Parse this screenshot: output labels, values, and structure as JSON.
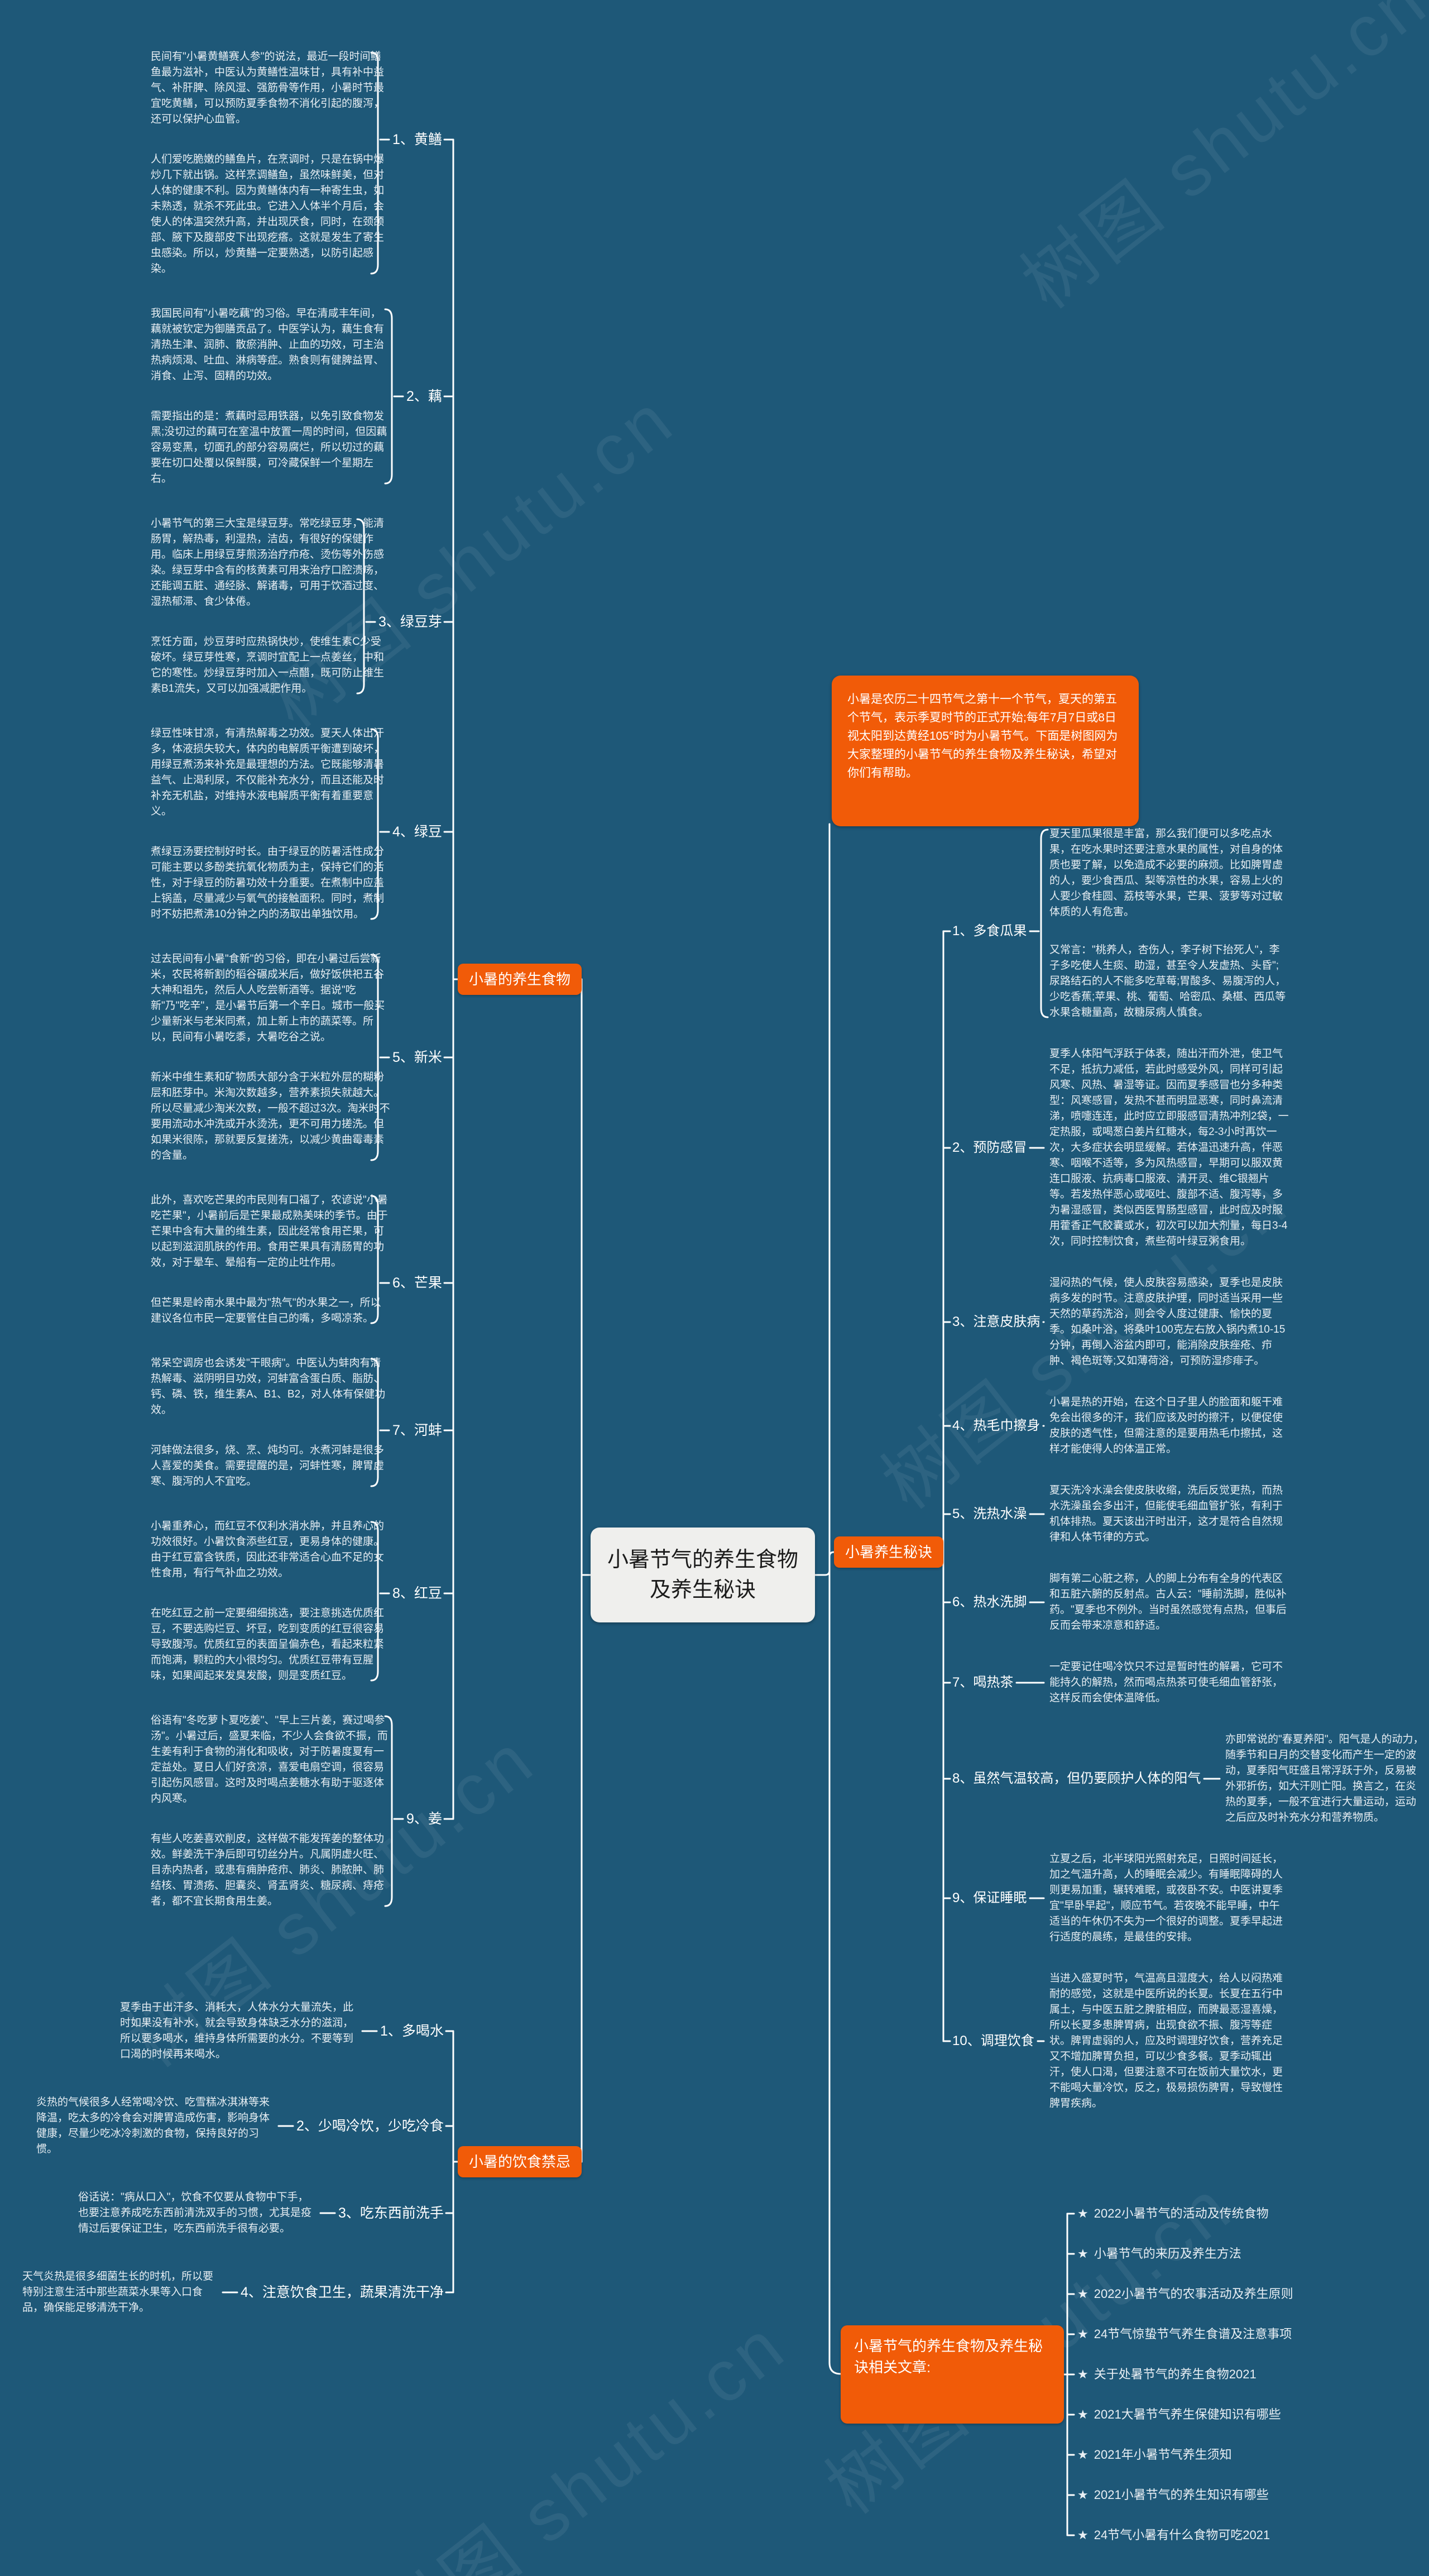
{
  "title": "小暑节气的养生食物及养生秘诀",
  "watermark": "树图 shutu.cn",
  "colors": {
    "background": "#1E5878",
    "accent_orange": "#F15B08",
    "title_box": "#EFEFED",
    "connector": "#FFFFFF",
    "note_text": "#E7EEF3"
  },
  "foods_branch": {
    "label": "小暑的养生食物",
    "items": [
      {
        "label": "1、黄鳝",
        "notes": [
          "民间有\"小暑黄鳝赛人参\"的说法，最近一段时间鳝鱼最为滋补，中医认为黄鳝性温味甘，具有补中益气、补肝脾、除风湿、强筋骨等作用，小暑时节最宜吃黄鳝，可以预防夏季食物不消化引起的腹泻，还可以保护心血管。",
          "人们爱吃脆嫩的鳝鱼片，在烹调时，只是在锅中爆炒几下就出锅。这样烹调鳝鱼，虽然味鲜美，但对人体的健康不利。因为黄鳝体内有一种寄生虫，如未熟透，就杀不死此虫。它进入人体半个月后，会使人的体温突然升高，并出现厌食，同时，在颈颌部、腋下及腹部皮下出现疙瘩。这就是发生了寄生虫感染。所以，炒黄鳝一定要熟透，以防引起感染。"
        ]
      },
      {
        "label": "2、藕",
        "notes": [
          "我国民间有\"小暑吃藕\"的习俗。早在清咸丰年间，藕就被钦定为御膳贡品了。中医学认为，藕生食有清热生津、润肺、散瘀消肿、止血的功效，可主治热病烦渴、吐血、淋病等症。熟食则有健脾益胃、消食、止泻、固精的功效。",
          "需要指出的是：煮藕时忌用铁器，以免引致食物发黑;没切过的藕可在室温中放置一周的时间，但因藕容易变黑，切面孔的部分容易腐烂，所以切过的藕要在切口处覆以保鲜膜，可冷藏保鲜一个星期左右。"
        ]
      },
      {
        "label": "3、绿豆芽",
        "notes": [
          "小暑节气的第三大宝是绿豆芽。常吃绿豆芽，能清肠胃，解热毒，利湿热，洁齿，有很好的保健作用。临床上用绿豆芽煎汤治疗疖疮、烫伤等外伤感染。绿豆芽中含有的核黄素可用来治疗口腔溃疡，还能调五脏、通经脉、解诸毒，可用于饮酒过度、湿热郁滞、食少体倦。",
          "烹饪方面，炒豆芽时应热锅快炒，使维生素C少受破坏。绿豆芽性寒，烹调时宜配上一点姜丝，中和它的寒性。炒绿豆芽时加入一点醋，既可防止维生素B1流失，又可以加强减肥作用。"
        ]
      },
      {
        "label": "4、绿豆",
        "notes": [
          "绿豆性味甘凉，有清热解毒之功效。夏天人体出汗多，体液损失较大，体内的电解质平衡遭到破坏，用绿豆煮汤来补充是最理想的方法。它既能够清暑益气、止渴利尿，不仅能补充水分，而且还能及时补充无机盐，对维持水液电解质平衡有着重要意义。",
          "煮绿豆汤要控制好时长。由于绿豆的防暑活性成分可能主要以多酚类抗氧化物质为主，保持它们的活性，对于绿豆的防暑功效十分重要。在煮制中应盖上锅盖，尽量减少与氧气的接触面积。同时，煮制时不妨把煮沸10分钟之内的汤取出单独饮用。"
        ]
      },
      {
        "label": "5、新米",
        "notes": [
          "过去民间有小暑\"食新\"的习俗，即在小暑过后尝新米，农民将新割的稻谷碾成米后，做好饭供祀五谷大神和祖先，然后人人吃尝新酒等。据说\"吃新\"乃\"吃辛\"，是小暑节后第一个辛日。城市一般买少量新米与老米同煮，加上新上市的蔬菜等。所以，民间有小暑吃黍，大暑吃谷之说。",
          "新米中维生素和矿物质大部分含于米粒外层的糊粉层和胚芽中。米淘次数越多，营养素损失就越大。所以尽量减少淘米次数，一般不超过3次。淘米时不要用流动水冲洗或开水烫洗，更不可用力搓洗。但如果米很陈，那就要反复搓洗，以减少黄曲霉毒素的含量。"
        ]
      },
      {
        "label": "6、芒果",
        "notes": [
          "此外，喜欢吃芒果的市民则有口福了，农谚说\"小暑吃芒果\"，小暑前后是芒果最成熟美味的季节。由于芒果中含有大量的维生素，因此经常食用芒果，可以起到滋润肌肤的作用。食用芒果具有清肠胃的功效，对于晕车、晕船有一定的止吐作用。",
          "但芒果是岭南水果中最为\"热气\"的水果之一，所以建议各位市民一定要管住自己的嘴，多喝凉茶。"
        ]
      },
      {
        "label": "7、河蚌",
        "notes": [
          "常呆空调房也会诱发\"干眼病\"。中医认为蚌肉有清热解毒、滋阴明目功效，河蚌富含蛋白质、脂肪、钙、磷、铁，维生素A、B1、B2，对人体有保健功效。",
          "河蚌做法很多，烧、烹、炖均可。水煮河蚌是很多人喜爱的美食。需要提醒的是，河蚌性寒，脾胃虚寒、腹泻的人不宜吃。"
        ]
      },
      {
        "label": "8、红豆",
        "notes": [
          "小暑重养心，而红豆不仅利水消水肿，并且养心的功效很好。小暑饮食添些红豆，更易身体的健康。由于红豆富含铁质，因此还非常适合心血不足的女性食用，有行气补血之功效。",
          "在吃红豆之前一定要细细挑选，要注意挑选优质红豆，不要选购烂豆、坏豆，吃到变质的红豆很容易导致腹泻。优质红豆的表面呈偏赤色，看起来粒紧而饱满，颗粒的大小很均匀。优质红豆带有豆腥味，如果闻起来发臭发酸，则是变质红豆。"
        ]
      },
      {
        "label": "9、姜",
        "notes": [
          "俗语有\"冬吃萝卜夏吃姜\"、\"早上三片姜，赛过喝参汤\"。小暑过后，盛夏来临，不少人会食欲不振，而生姜有利于食物的消化和吸收，对于防暑度夏有一定益处。夏日人们好贪凉，喜爱电扇空调，很容易引起伤风感冒。这时及时喝点姜糖水有助于驱逐体内风寒。",
          "有些人吃姜喜欢削皮，这样做不能发挥姜的整体功效。鲜姜洗干净后即可切丝分片。凡属阴虚火旺、目赤内热者，或患有痈肿疮疖、肺炎、肺脓肿、肺结核、胃溃疡、胆囊炎、肾盂肾炎、糖尿病、痔疮者，都不宜长期食用生姜。"
        ]
      }
    ]
  },
  "tips_branch": {
    "label": "小暑养生秘诀",
    "intro": "小暑是农历二十四节气之第十一个节气，夏天的第五个节气，表示季夏时节的正式开始;每年7月7日或8日视太阳到达黄经105°时为小暑节气。下面是树图网为大家整理的小暑节气的养生食物及养生秘诀，希望对你们有帮助。",
    "items": [
      {
        "label": "1、多食瓜果",
        "notes": [
          "夏天里瓜果很是丰富，那么我们便可以多吃点水果，在吃水果时还要注意水果的属性，对自身的体质也要了解，以免造成不必要的麻烦。比如脾胃虚的人，要少食西瓜、梨等凉性的水果，容易上火的人要少食桂圆、荔枝等水果，芒果、菠萝等对过敏体质的人有危害。",
          "又常言：\"桃养人，杏伤人，李子树下抬死人\"，李子多吃使人生痰、助湿，甚至令人发虚热、头昏\";尿路结石的人不能多吃草莓;胃酸多、易腹泻的人，少吃香蕉;苹果、桃、葡萄、哈密瓜、桑椹、西瓜等水果含糖量高，故糖尿病人慎食。"
        ]
      },
      {
        "label": "2、预防感冒",
        "notes": [
          "夏季人体阳气浮跃于体表，随出汗而外泄，使卫气不足，抵抗力减低，若此时感受外风，同样可引起风寒、风热、暑湿等证。因而夏季感冒也分多种类型：风寒感冒，发热不甚而明显恶寒，同时鼻流清涕，喷嚏连连，此时应立即服感冒清热冲剂2袋，一定热服，或喝葱白姜片红糖水，每2-3小时再饮一次，大多症状会明显缓解。若体温迅速升高，伴恶寒、咽喉不适等，多为风热感冒，早期可以服双黄连口服液、抗病毒口服液、清开灵、维C银翘片等。若发热伴恶心或呕吐、腹部不适、腹泻等，多为暑湿感冒，类似西医胃肠型感冒，此时应及时服用藿香正气胶囊或水，初次可以加大剂量，每日3-4次，同时控制饮食，煮些荷叶绿豆粥食用。"
        ]
      },
      {
        "label": "3、注意皮肤病",
        "notes": [
          "湿闷热的气候，使人皮肤容易感染，夏季也是皮肤病多发的时节。注意皮肤护理，同时适当采用一些天然的草药洗浴，则会令人度过健康、愉快的夏季。如桑叶浴，将桑叶100克左右放入锅内煮10-15分钟，再倒入浴盆内即可，能消除皮肤痤疮、疖肿、褐色斑等;又如薄荷浴，可预防湿疹痱子。"
        ]
      },
      {
        "label": "4、热毛巾擦身",
        "notes": [
          "小暑是热的开始，在这个日子里人的脸面和躯干难免会出很多的汗，我们应该及时的擦汗，以便促使皮肤的透气性，但需注意的是要用热毛巾擦拭，这样才能使得人的体温正常。"
        ]
      },
      {
        "label": "5、洗热水澡",
        "notes": [
          "夏天洗冷水澡会使皮肤收缩，洗后反觉更热，而热水洗澡虽会多出汗，但能使毛细血管扩张，有利于机体排热。夏天该出汗时出汗，这才是符合自然规律和人体节律的方式。"
        ]
      },
      {
        "label": "6、热水洗脚",
        "notes": [
          "脚有第二心脏之称，人的脚上分布有全身的代表区和五脏六腑的反射点。古人云：\"睡前洗脚，胜似补药。\"夏季也不例外。当时虽然感觉有点热，但事后反而会带来凉意和舒适。"
        ]
      },
      {
        "label": "7、喝热茶",
        "notes": [
          "一定要记住喝冷饮只不过是暂时性的解暑，它可不能持久的解热，然而喝点热茶可使毛细血管舒张，这样反而会使体温降低。"
        ]
      },
      {
        "label": "8、虽然气温较高，但仍要顾护人体的阳气",
        "notes": [
          "亦即常说的\"春夏养阳\"。阳气是人的动力，随季节和日月的交替变化而产生一定的波动，夏季阳气旺盛且常浮跃于外，反易被外邪折伤，如大汗则亡阳。换言之，在炎热的夏季，一般不宜进行大量运动，运动之后应及时补充水分和营养物质。"
        ]
      },
      {
        "label": "9、保证睡眠",
        "notes": [
          "立夏之后，北半球阳光照射充足，日照时间延长，加之气温升高，人的睡眠会减少。有睡眠障碍的人则更易加重，辗转难眠，或夜卧不安。中医讲夏季宜\"早卧早起\"，顺应节气。若夜晚不能早睡，中午适当的午休仍不失为一个很好的调整。夏季早起进行适度的晨练，是最佳的安排。"
        ]
      },
      {
        "label": "10、调理饮食",
        "notes": [
          "当进入盛夏时节，气温高且湿度大，给人以闷热难耐的感觉，这就是中医所说的长夏。长夏在五行中属土，与中医五脏之脾脏相应，而脾最恶湿喜燥，所以长夏多患脾胃病，出现食欲不振、腹泻等症状。脾胃虚弱的人，应及时调理好饮食，营养充足又不增加脾胃负担，可以少食多餐。夏季动辄出汗，使人口渴，但要注意不可在饭前大量饮水，更不能喝大量冷饮，反之，极易损伤脾胃，导致慢性脾胃疾病。"
        ]
      }
    ]
  },
  "taboos_branch": {
    "label": "小暑的饮食禁忌",
    "items": [
      {
        "label": "1、多喝水",
        "notes": [
          "夏季由于出汗多、消耗大，人体水分大量流失，此时如果没有补水，就会导致身体缺乏水分的滋润，所以要多喝水，维持身体所需要的水分。不要等到口渴的时候再来喝水。"
        ]
      },
      {
        "label": "2、少喝冷饮，少吃冷食",
        "notes": [
          "炎热的气候很多人经常喝冷饮、吃雪糕冰淇淋等来降温，吃太多的冷食会对脾胃造成伤害，影响身体健康，尽量少吃冰冷刺激的食物，保持良好的习惯。"
        ]
      },
      {
        "label": "3、吃东西前洗手",
        "notes": [
          "俗话说：\"病从口入\"，饮食不仅要从食物中下手，也要注意养成吃东西前清洗双手的习惯，尤其是疫情过后要保证卫生，吃东西前洗手很有必要。"
        ]
      },
      {
        "label": "4、注意饮食卫生，蔬果清洗干净",
        "notes": [
          "天气炎热是很多细菌生长的时机，所以要特别注意生活中那些蔬菜水果等入口食品，确保能足够清洗干净。"
        ]
      }
    ]
  },
  "related_branch": {
    "label": "小暑节气的养生食物及养生秘诀相关文章:",
    "bullet": "★",
    "articles": [
      "2022小暑节气的活动及传统食物",
      "小暑节气的来历及养生方法",
      "2022小暑节气的农事活动及养生原则",
      "24节气惊蛰节气养生食谱及注意事项",
      "关于处暑节气的养生食物2021",
      "2021大暑节气养生保健知识有哪些",
      "2021年小暑节气养生须知",
      "2021小暑节气的养生知识有哪些",
      "24节气小暑有什么食物可吃2021"
    ]
  }
}
